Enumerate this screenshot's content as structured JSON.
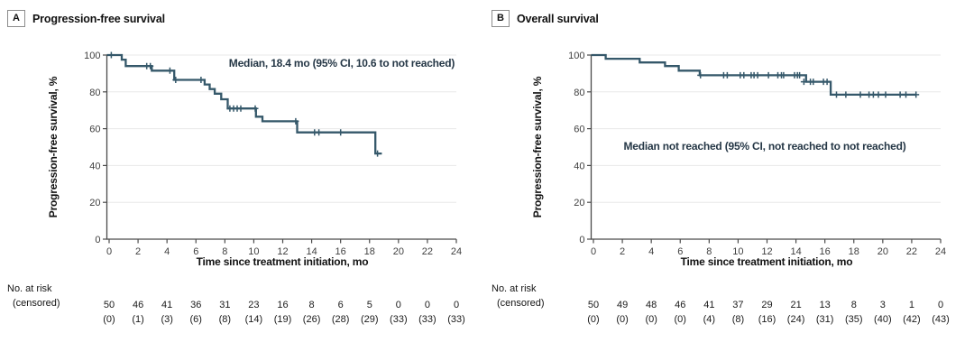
{
  "at_risk_header": {
    "line1": "No. at risk",
    "line2": "(censored)"
  },
  "colors": {
    "curve": "#35586a",
    "grid": "#e8e8e8",
    "axis": "#4a4a4a",
    "text": "#111111",
    "annotation": "#253746"
  },
  "chart_data": [
    {
      "type": "line",
      "subtype": "kaplan-meier-step",
      "panel_letter": "A",
      "title": "Progression-free survival",
      "annotation": "Median, 18.4 mo (95% CI, 10.6 to not reached)",
      "x_label": "Time since treatment initiation, mo",
      "y_label": "Progression-free survival, %",
      "xlim": [
        0,
        24
      ],
      "ylim": [
        0,
        100
      ],
      "x_ticks": [
        0,
        2,
        4,
        6,
        8,
        10,
        12,
        14,
        16,
        18,
        20,
        22,
        24
      ],
      "y_ticks": [
        0,
        20,
        40,
        60,
        80,
        100
      ],
      "grid_lines_pct": [
        20,
        40,
        60,
        80,
        100
      ],
      "steps": [
        [
          0,
          100
        ],
        [
          0.87,
          97.5
        ],
        [
          1.15,
          94
        ],
        [
          2.95,
          91.5
        ],
        [
          4.5,
          86.5
        ],
        [
          6.6,
          84
        ],
        [
          6.95,
          81.5
        ],
        [
          7.3,
          79
        ],
        [
          7.75,
          76
        ],
        [
          8.2,
          71
        ],
        [
          10.15,
          66.5
        ],
        [
          10.6,
          64
        ],
        [
          13.0,
          58
        ],
        [
          18.4,
          46.5
        ]
      ],
      "end_time": 18.85,
      "censor_marks": [
        [
          0.15,
          100
        ],
        [
          2.6,
          94
        ],
        [
          2.85,
          94
        ],
        [
          4.2,
          91.5
        ],
        [
          4.6,
          86.5
        ],
        [
          6.35,
          86.5
        ],
        [
          8.35,
          71
        ],
        [
          8.6,
          71
        ],
        [
          8.85,
          71
        ],
        [
          9.1,
          71
        ],
        [
          10.1,
          71
        ],
        [
          12.9,
          64
        ],
        [
          14.2,
          58
        ],
        [
          14.5,
          58
        ],
        [
          16.0,
          58
        ],
        [
          18.55,
          46.5
        ]
      ],
      "at_risk": [
        "50",
        "46",
        "41",
        "36",
        "31",
        "23",
        "16",
        "8",
        "6",
        "5",
        "0",
        "0",
        "0"
      ],
      "censored": [
        "(0)",
        "(1)",
        "(3)",
        "(6)",
        "(8)",
        "(14)",
        "(19)",
        "(26)",
        "(28)",
        "(29)",
        "(33)",
        "(33)",
        "(33)"
      ]
    },
    {
      "type": "line",
      "subtype": "kaplan-meier-step",
      "panel_letter": "B",
      "title": "Overall survival",
      "annotation": "Median not reached (95% CI, not reached to not reached)",
      "x_label": "Time since treatment initiation, mo",
      "y_label": "Progression-free survival, %",
      "xlim": [
        0,
        24
      ],
      "ylim": [
        0,
        100
      ],
      "x_ticks": [
        0,
        2,
        4,
        6,
        8,
        10,
        12,
        14,
        16,
        18,
        20,
        22,
        24
      ],
      "y_ticks": [
        0,
        20,
        40,
        60,
        80,
        100
      ],
      "grid_lines_pct": [
        20,
        40,
        60,
        80,
        100
      ],
      "steps": [
        [
          0,
          100
        ],
        [
          0.85,
          98
        ],
        [
          3.2,
          96
        ],
        [
          4.95,
          94
        ],
        [
          5.9,
          91.5
        ],
        [
          7.35,
          89
        ],
        [
          14.7,
          85.5
        ],
        [
          16.4,
          78.5
        ]
      ],
      "end_time": 22.35,
      "censor_marks": [
        [
          7.4,
          89
        ],
        [
          9.0,
          89
        ],
        [
          9.25,
          89
        ],
        [
          10.15,
          89
        ],
        [
          10.4,
          89
        ],
        [
          10.9,
          89
        ],
        [
          11.1,
          89
        ],
        [
          11.35,
          89
        ],
        [
          12.1,
          89
        ],
        [
          12.75,
          89
        ],
        [
          13.0,
          89
        ],
        [
          13.15,
          89
        ],
        [
          13.9,
          89
        ],
        [
          14.1,
          89
        ],
        [
          14.25,
          89
        ],
        [
          14.55,
          85.5
        ],
        [
          15.0,
          85.5
        ],
        [
          15.2,
          85.5
        ],
        [
          15.9,
          85.5
        ],
        [
          16.15,
          85.5
        ],
        [
          16.8,
          78.5
        ],
        [
          17.45,
          78.5
        ],
        [
          18.45,
          78.5
        ],
        [
          19.05,
          78.5
        ],
        [
          19.35,
          78.5
        ],
        [
          19.7,
          78.5
        ],
        [
          20.2,
          78.5
        ],
        [
          21.2,
          78.5
        ],
        [
          21.6,
          78.5
        ],
        [
          22.3,
          78.5
        ]
      ],
      "at_risk": [
        "50",
        "49",
        "48",
        "46",
        "41",
        "37",
        "29",
        "21",
        "13",
        "8",
        "3",
        "1",
        "0"
      ],
      "censored": [
        "(0)",
        "(0)",
        "(0)",
        "(0)",
        "(4)",
        "(8)",
        "(16)",
        "(24)",
        "(31)",
        "(35)",
        "(40)",
        "(42)",
        "(43)"
      ]
    }
  ]
}
